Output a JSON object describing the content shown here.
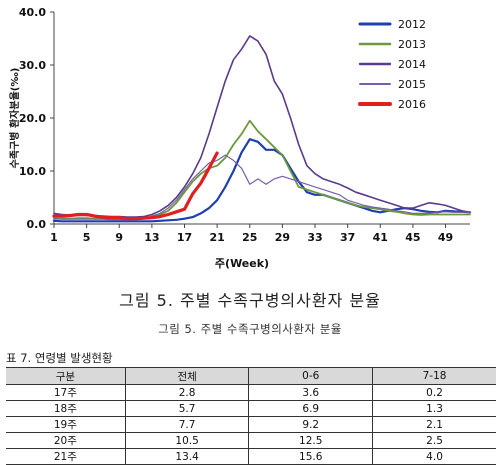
{
  "chart_data": {
    "type": "line",
    "ylabel": "수족구병 환자분율(‰)",
    "xlabel": "주(Week)",
    "ylim": [
      0,
      40
    ],
    "yticks": [
      "0.0",
      "10.0",
      "20.0",
      "30.0",
      "40.0"
    ],
    "xlim": [
      1,
      52
    ],
    "xticks": [
      "1",
      "5",
      "9",
      "13",
      "17",
      "21",
      "25",
      "29",
      "33",
      "37",
      "41",
      "45",
      "49"
    ],
    "legend_position": "top-right",
    "series": [
      {
        "name": "2012",
        "color": "#1f3fb0",
        "width": 2.2,
        "x": [
          1,
          2,
          3,
          4,
          5,
          6,
          7,
          8,
          9,
          10,
          11,
          12,
          13,
          14,
          15,
          16,
          17,
          18,
          19,
          20,
          21,
          22,
          23,
          24,
          25,
          26,
          27,
          28,
          29,
          30,
          31,
          32,
          33,
          34,
          35,
          36,
          37,
          38,
          39,
          40,
          41,
          42,
          43,
          44,
          45,
          46,
          47,
          48,
          49,
          50,
          51,
          52
        ],
        "y": [
          0.6,
          0.5,
          0.5,
          0.5,
          0.5,
          0.5,
          0.5,
          0.5,
          0.5,
          0.5,
          0.5,
          0.5,
          0.5,
          0.6,
          0.7,
          0.8,
          1.0,
          1.3,
          2.0,
          3.0,
          4.5,
          7.0,
          10.0,
          13.5,
          16.0,
          15.5,
          14.0,
          14.0,
          13.0,
          10.5,
          8.0,
          6.0,
          5.5,
          5.5,
          5.0,
          4.5,
          4.0,
          3.5,
          3.0,
          2.5,
          2.2,
          2.5,
          2.8,
          3.0,
          2.8,
          2.5,
          2.3,
          2.2,
          2.5,
          2.4,
          2.3,
          2.2
        ]
      },
      {
        "name": "2013",
        "color": "#6b9a3a",
        "width": 1.8,
        "x": [
          1,
          2,
          3,
          4,
          5,
          6,
          7,
          8,
          9,
          10,
          11,
          12,
          13,
          14,
          15,
          16,
          17,
          18,
          19,
          20,
          21,
          22,
          23,
          24,
          25,
          26,
          27,
          28,
          29,
          30,
          31,
          32,
          33,
          34,
          35,
          36,
          37,
          38,
          39,
          40,
          41,
          42,
          43,
          44,
          45,
          46,
          47,
          48,
          49,
          50,
          51,
          52
        ],
        "y": [
          1.0,
          1.0,
          1.0,
          1.1,
          1.1,
          1.0,
          1.0,
          1.0,
          1.0,
          0.9,
          0.9,
          1.0,
          1.3,
          1.8,
          2.5,
          4.0,
          6.0,
          8.0,
          9.5,
          10.5,
          11.0,
          12.5,
          15.0,
          17.0,
          19.5,
          17.5,
          16.0,
          14.5,
          13.0,
          10.0,
          7.0,
          6.5,
          6.0,
          5.5,
          5.0,
          4.5,
          4.0,
          3.5,
          3.2,
          3.0,
          2.8,
          2.5,
          2.3,
          2.0,
          1.8,
          1.7,
          1.8,
          1.8,
          1.8,
          1.8,
          1.8,
          1.8
        ]
      },
      {
        "name": "2014",
        "color": "#5b3a8c",
        "width": 1.6,
        "x": [
          1,
          2,
          3,
          4,
          5,
          6,
          7,
          8,
          9,
          10,
          11,
          12,
          13,
          14,
          15,
          16,
          17,
          18,
          19,
          20,
          21,
          22,
          23,
          24,
          25,
          26,
          27,
          28,
          29,
          30,
          31,
          32,
          33,
          34,
          35,
          36,
          37,
          38,
          39,
          40,
          41,
          42,
          43,
          44,
          45,
          46,
          47,
          48,
          49,
          50,
          51,
          52
        ],
        "y": [
          2.0,
          1.8,
          1.7,
          1.6,
          1.6,
          1.5,
          1.5,
          1.4,
          1.4,
          1.3,
          1.3,
          1.4,
          1.8,
          2.5,
          3.5,
          5.0,
          7.0,
          9.5,
          12.5,
          17.0,
          22.0,
          27.0,
          31.0,
          33.0,
          35.5,
          34.5,
          32.0,
          27.0,
          24.5,
          20.0,
          15.0,
          11.0,
          9.5,
          8.5,
          8.0,
          7.5,
          6.8,
          6.0,
          5.5,
          5.0,
          4.5,
          4.0,
          3.5,
          3.0,
          3.0,
          3.5,
          4.0,
          3.8,
          3.5,
          3.0,
          2.5,
          2.2
        ]
      },
      {
        "name": "2015",
        "color": "#7a5fa8",
        "width": 1.2,
        "x": [
          1,
          2,
          3,
          4,
          5,
          6,
          7,
          8,
          9,
          10,
          11,
          12,
          13,
          14,
          15,
          16,
          17,
          18,
          19,
          20,
          21,
          22,
          23,
          24,
          25,
          26,
          27,
          28,
          29,
          30,
          31,
          32,
          33,
          34,
          35,
          36,
          37,
          38,
          39,
          40,
          41,
          42,
          43,
          44,
          45,
          46,
          47,
          48,
          49,
          50,
          51,
          52
        ],
        "y": [
          1.0,
          0.9,
          0.9,
          0.9,
          0.9,
          0.9,
          0.9,
          0.8,
          0.8,
          0.8,
          0.9,
          1.0,
          1.5,
          2.0,
          3.0,
          4.5,
          6.5,
          8.5,
          10.0,
          11.5,
          12.0,
          13.0,
          12.0,
          10.5,
          7.5,
          8.5,
          7.5,
          8.5,
          9.0,
          8.5,
          8.0,
          7.5,
          7.0,
          6.5,
          6.0,
          5.5,
          4.5,
          4.0,
          3.5,
          3.2,
          3.0,
          2.8,
          2.5,
          2.3,
          2.0,
          2.0,
          2.0,
          2.2,
          2.3,
          2.2,
          2.2,
          2.2
        ]
      },
      {
        "name": "2016",
        "color": "#e02020",
        "width": 3.2,
        "x": [
          1,
          2,
          3,
          4,
          5,
          6,
          7,
          8,
          9,
          10,
          11,
          12,
          13,
          14,
          15,
          16,
          17,
          18,
          19,
          20,
          21
        ],
        "y": [
          1.5,
          1.5,
          1.6,
          1.8,
          1.8,
          1.5,
          1.3,
          1.2,
          1.2,
          1.0,
          1.0,
          1.1,
          1.2,
          1.4,
          1.8,
          2.3,
          2.8,
          5.7,
          7.7,
          10.5,
          13.4
        ]
      }
    ]
  },
  "captions": {
    "figure_large": "그림 5. 주별 수족구병의사환자 분율",
    "figure_small": "그림 5. 주별 수족구병의사환자 분율"
  },
  "table": {
    "title": "표 7. 연령별 발생현황",
    "headers": [
      "구분",
      "전체",
      "0-6",
      "7-18"
    ],
    "rows": [
      [
        "17주",
        "2.8",
        "3.6",
        "0.2"
      ],
      [
        "18주",
        "5.7",
        "6.9",
        "1.3"
      ],
      [
        "19주",
        "7.7",
        "9.2",
        "2.1"
      ],
      [
        "20주",
        "10.5",
        "12.5",
        "2.5"
      ],
      [
        "21주",
        "13.4",
        "15.6",
        "4.0"
      ]
    ]
  }
}
